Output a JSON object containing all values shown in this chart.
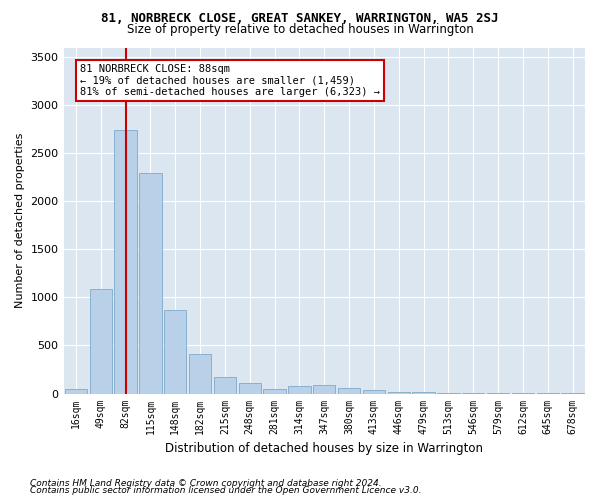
{
  "title": "81, NORBRECK CLOSE, GREAT SANKEY, WARRINGTON, WA5 2SJ",
  "subtitle": "Size of property relative to detached houses in Warrington",
  "xlabel": "Distribution of detached houses by size in Warrington",
  "ylabel": "Number of detached properties",
  "categories": [
    "16sqm",
    "49sqm",
    "82sqm",
    "115sqm",
    "148sqm",
    "182sqm",
    "215sqm",
    "248sqm",
    "281sqm",
    "314sqm",
    "347sqm",
    "380sqm",
    "413sqm",
    "446sqm",
    "479sqm",
    "513sqm",
    "546sqm",
    "579sqm",
    "612sqm",
    "645sqm",
    "678sqm"
  ],
  "values": [
    50,
    1090,
    2740,
    2290,
    870,
    415,
    170,
    105,
    48,
    75,
    88,
    55,
    38,
    20,
    12,
    8,
    5,
    3,
    2,
    1,
    1
  ],
  "bar_color": "#b8d0e8",
  "bar_edgecolor": "#8ab0d0",
  "plot_background": "#dce6f0",
  "vline_bin_index": 2,
  "vline_color": "#cc0000",
  "annotation_text": "81 NORBRECK CLOSE: 88sqm\n← 19% of detached houses are smaller (1,459)\n81% of semi-detached houses are larger (6,323) →",
  "annotation_box_color": "#ffffff",
  "annotation_box_edgecolor": "#cc0000",
  "ylim": [
    0,
    3600
  ],
  "yticks": [
    0,
    500,
    1000,
    1500,
    2000,
    2500,
    3000,
    3500
  ],
  "footnote1": "Contains HM Land Registry data © Crown copyright and database right 2024.",
  "footnote2": "Contains public sector information licensed under the Open Government Licence v3.0."
}
